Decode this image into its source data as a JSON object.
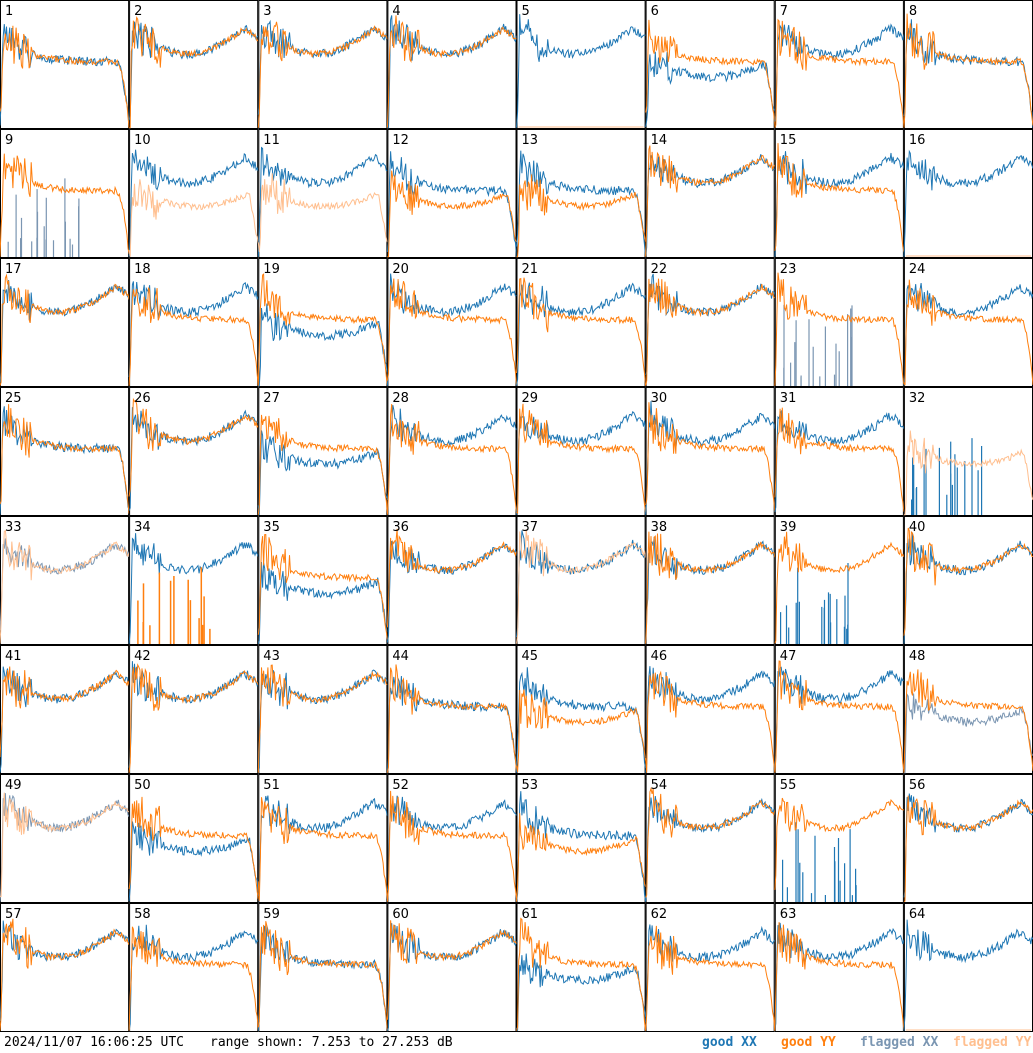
{
  "footer": {
    "timestamp": "2024/11/07 16:06:25 UTC",
    "range_text": "range shown: 7.253 to 27.253 dB",
    "legend": [
      {
        "label": "good XX",
        "color": "#1f77b4"
      },
      {
        "label": "good YY",
        "color": "#ff7f0e"
      },
      {
        "label": "flagged XX",
        "color": "#7b96b2"
      },
      {
        "label": "flagged YY",
        "color": "#ffbf8f"
      }
    ]
  },
  "chart_data": {
    "type": "line",
    "ylim": [
      7.253,
      27.253
    ],
    "grid": "8x8",
    "panels": [
      {
        "id": "1",
        "xx": "good",
        "yy": "good",
        "shape": "A"
      },
      {
        "id": "2",
        "xx": "good",
        "yy": "good",
        "shape": "B"
      },
      {
        "id": "3",
        "xx": "good",
        "yy": "good",
        "shape": "B"
      },
      {
        "id": "4",
        "xx": "good",
        "yy": "good",
        "shape": "B"
      },
      {
        "id": "5",
        "xx": "good",
        "yy": "flagged",
        "shape": "D"
      },
      {
        "id": "6",
        "xx": "good",
        "yy": "good",
        "shape": "E"
      },
      {
        "id": "7",
        "xx": "good",
        "yy": "good",
        "shape": "C"
      },
      {
        "id": "8",
        "xx": "good",
        "yy": "good",
        "shape": "A"
      },
      {
        "id": "9",
        "xx": "flagged",
        "yy": "good",
        "shape": "F"
      },
      {
        "id": "10",
        "xx": "good",
        "yy": "flagged",
        "shape": "G"
      },
      {
        "id": "11",
        "xx": "good",
        "yy": "flagged",
        "shape": "G"
      },
      {
        "id": "12",
        "xx": "good",
        "yy": "good",
        "shape": "H"
      },
      {
        "id": "13",
        "xx": "good",
        "yy": "good",
        "shape": "H"
      },
      {
        "id": "14",
        "xx": "good",
        "yy": "good",
        "shape": "B"
      },
      {
        "id": "15",
        "xx": "good",
        "yy": "good",
        "shape": "C"
      },
      {
        "id": "16",
        "xx": "good",
        "yy": "flagged",
        "shape": "D"
      },
      {
        "id": "17",
        "xx": "good",
        "yy": "good",
        "shape": "B"
      },
      {
        "id": "18",
        "xx": "good",
        "yy": "good",
        "shape": "C"
      },
      {
        "id": "19",
        "xx": "good",
        "yy": "good",
        "shape": "E"
      },
      {
        "id": "20",
        "xx": "good",
        "yy": "good",
        "shape": "C"
      },
      {
        "id": "21",
        "xx": "good",
        "yy": "good",
        "shape": "C"
      },
      {
        "id": "22",
        "xx": "good",
        "yy": "good",
        "shape": "B"
      },
      {
        "id": "23",
        "xx": "flagged",
        "yy": "good",
        "shape": "F"
      },
      {
        "id": "24",
        "xx": "good",
        "yy": "good",
        "shape": "C"
      },
      {
        "id": "25",
        "xx": "good",
        "yy": "good",
        "shape": "A"
      },
      {
        "id": "26",
        "xx": "good",
        "yy": "good",
        "shape": "B"
      },
      {
        "id": "27",
        "xx": "good",
        "yy": "good",
        "shape": "E"
      },
      {
        "id": "28",
        "xx": "good",
        "yy": "good",
        "shape": "C"
      },
      {
        "id": "29",
        "xx": "good",
        "yy": "good",
        "shape": "C"
      },
      {
        "id": "30",
        "xx": "good",
        "yy": "good",
        "shape": "C"
      },
      {
        "id": "31",
        "xx": "good",
        "yy": "good",
        "shape": "C"
      },
      {
        "id": "32",
        "xx": "good",
        "yy": "flagged",
        "shape": "J"
      },
      {
        "id": "33",
        "xx": "flagged",
        "yy": "flagged",
        "shape": "B"
      },
      {
        "id": "34",
        "xx": "good",
        "yy": "good",
        "shape": "K"
      },
      {
        "id": "35",
        "xx": "good",
        "yy": "good",
        "shape": "E"
      },
      {
        "id": "36",
        "xx": "good",
        "yy": "good",
        "shape": "B"
      },
      {
        "id": "37",
        "xx": "good",
        "yy": "flagged",
        "shape": "B"
      },
      {
        "id": "38",
        "xx": "good",
        "yy": "good",
        "shape": "B"
      },
      {
        "id": "39",
        "xx": "good",
        "yy": "good",
        "shape": "L"
      },
      {
        "id": "40",
        "xx": "good",
        "yy": "good",
        "shape": "B"
      },
      {
        "id": "41",
        "xx": "good",
        "yy": "good",
        "shape": "B"
      },
      {
        "id": "42",
        "xx": "good",
        "yy": "good",
        "shape": "B"
      },
      {
        "id": "43",
        "xx": "good",
        "yy": "good",
        "shape": "B"
      },
      {
        "id": "44",
        "xx": "good",
        "yy": "good",
        "shape": "A"
      },
      {
        "id": "45",
        "xx": "good",
        "yy": "good",
        "shape": "H"
      },
      {
        "id": "46",
        "xx": "good",
        "yy": "good",
        "shape": "C"
      },
      {
        "id": "47",
        "xx": "good",
        "yy": "good",
        "shape": "C"
      },
      {
        "id": "48",
        "xx": "flagged",
        "yy": "good",
        "shape": "I"
      },
      {
        "id": "49",
        "xx": "flagged",
        "yy": "flagged",
        "shape": "B"
      },
      {
        "id": "50",
        "xx": "good",
        "yy": "good",
        "shape": "I"
      },
      {
        "id": "51",
        "xx": "good",
        "yy": "good",
        "shape": "C"
      },
      {
        "id": "52",
        "xx": "good",
        "yy": "good",
        "shape": "C"
      },
      {
        "id": "53",
        "xx": "good",
        "yy": "good",
        "shape": "H"
      },
      {
        "id": "54",
        "xx": "good",
        "yy": "good",
        "shape": "B"
      },
      {
        "id": "55",
        "xx": "good",
        "yy": "good",
        "shape": "L"
      },
      {
        "id": "56",
        "xx": "good",
        "yy": "good",
        "shape": "B"
      },
      {
        "id": "57",
        "xx": "good",
        "yy": "good",
        "shape": "B"
      },
      {
        "id": "58",
        "xx": "good",
        "yy": "good",
        "shape": "C"
      },
      {
        "id": "59",
        "xx": "good",
        "yy": "good",
        "shape": "A"
      },
      {
        "id": "60",
        "xx": "good",
        "yy": "good",
        "shape": "B"
      },
      {
        "id": "61",
        "xx": "good",
        "yy": "good",
        "shape": "E"
      },
      {
        "id": "62",
        "xx": "good",
        "yy": "good",
        "shape": "C"
      },
      {
        "id": "63",
        "xx": "good",
        "yy": "good",
        "shape": "C"
      },
      {
        "id": "64",
        "xx": "good",
        "yy": "flagged",
        "shape": "D"
      }
    ]
  }
}
